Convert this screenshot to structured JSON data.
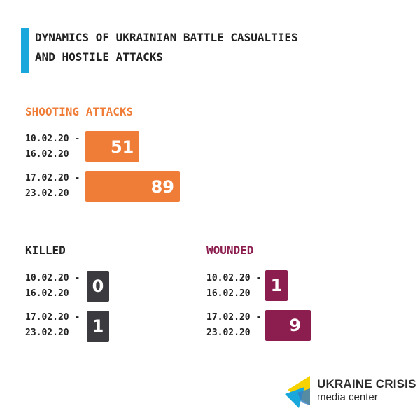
{
  "title": {
    "line1": "DYNAMICS OF UKRAINIAN BATTLE CASUALTIES",
    "line2": "AND HOSTILE ATTACKS"
  },
  "colors": {
    "accent": "#1aa8dc",
    "shooting": "#f07d37",
    "killed": "#3b3b3f",
    "wounded": "#8c1d4f",
    "text": "#222222"
  },
  "chart_data": [
    {
      "type": "bar",
      "title": "SHOOTING ATTACKS",
      "categories": [
        {
          "line1": "10.02.20 -",
          "line2": "16.02.20"
        },
        {
          "line1": "17.02.20 -",
          "line2": "23.02.20"
        }
      ],
      "values": [
        51,
        89
      ],
      "value_labels": [
        "51",
        "89"
      ],
      "xlim": [
        0,
        89
      ]
    },
    {
      "type": "bar",
      "title": "KILLED",
      "categories": [
        {
          "line1": "10.02.20 -",
          "line2": "16.02.20"
        },
        {
          "line1": "17.02.20 -",
          "line2": "23.02.20"
        }
      ],
      "values": [
        0,
        1
      ],
      "value_labels": [
        "0",
        "1"
      ]
    },
    {
      "type": "bar",
      "title": "WOUNDED",
      "categories": [
        {
          "line1": "10.02.20 -",
          "line2": "16.02.20"
        },
        {
          "line1": "17.02.20 -",
          "line2": "23.02.20"
        }
      ],
      "values": [
        1,
        9
      ],
      "value_labels": [
        "1",
        "9"
      ],
      "xlim": [
        0,
        9
      ]
    }
  ],
  "logo": {
    "line1": "UKRAINE CRISIS",
    "line2": "media center",
    "icon": "ukraine-crisis-logo-icon"
  }
}
